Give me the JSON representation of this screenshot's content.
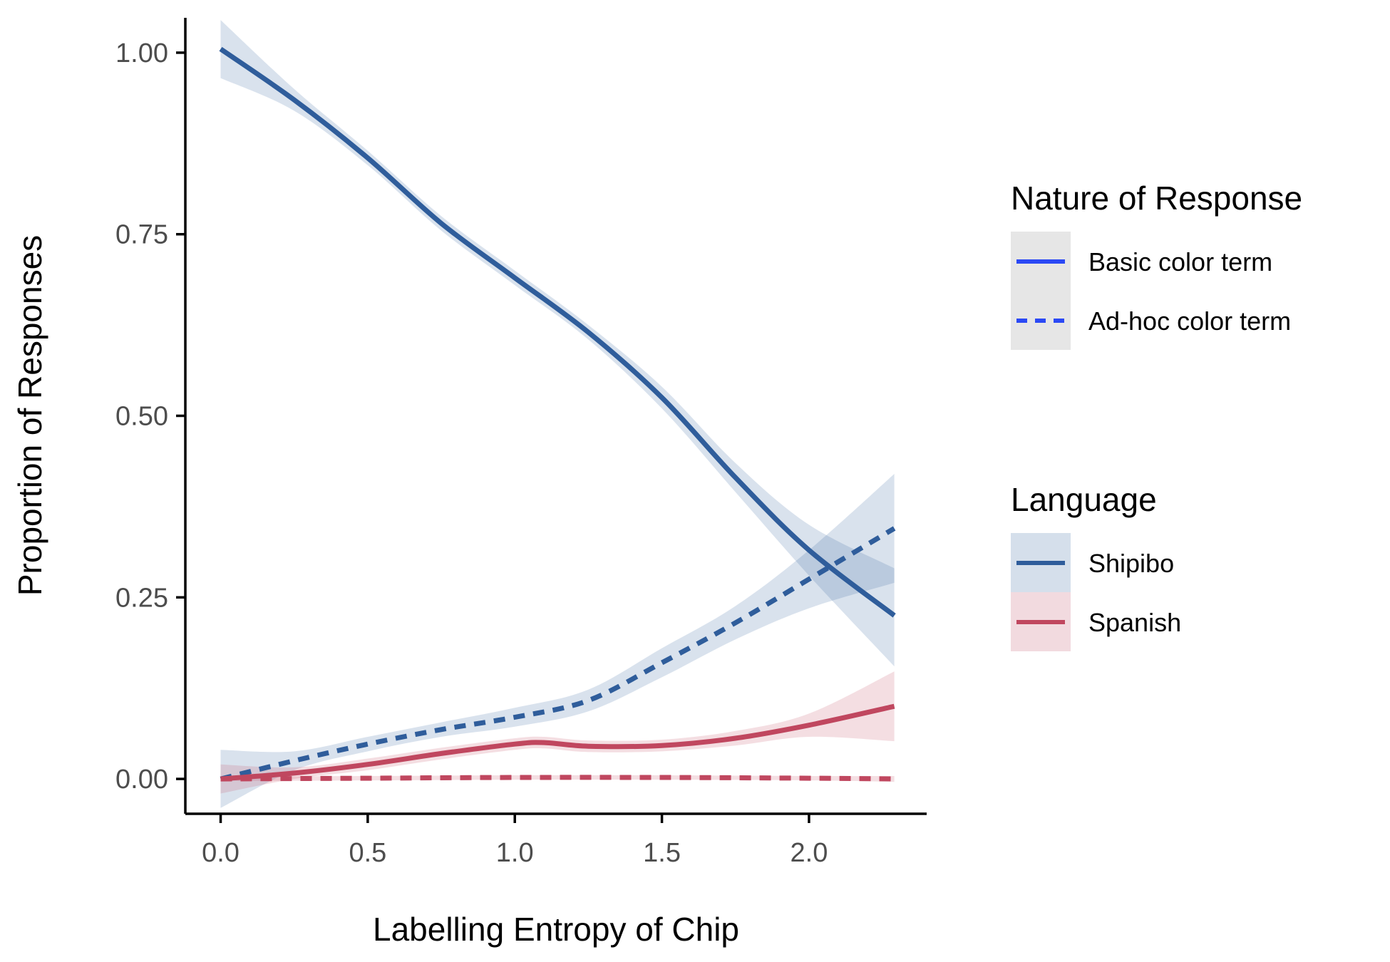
{
  "chart_data": {
    "type": "line",
    "xlabel": "Labelling Entropy of Chip",
    "ylabel": "Proportion of Responses",
    "xlim": [
      -0.12,
      2.4
    ],
    "ylim": [
      -0.048,
      1.048
    ],
    "x_ticks": [
      0.0,
      0.5,
      1.0,
      1.5,
      2.0
    ],
    "x_tick_labels": [
      "0.0",
      "0.5",
      "1.0",
      "1.5",
      "2.0"
    ],
    "y_ticks": [
      0.0,
      0.25,
      0.5,
      0.75,
      1.0
    ],
    "y_tick_labels": [
      "0.00",
      "0.25",
      "0.50",
      "0.75",
      "1.00"
    ],
    "grid": false,
    "legend_position": "right",
    "colors": {
      "shipibo": "#2f5d9b",
      "spanish": "#c0475f",
      "legend_key_line": "#2b49f5"
    },
    "legends": [
      {
        "title": "Nature of Response",
        "entries": [
          {
            "label": "Basic color term",
            "linestyle": "solid"
          },
          {
            "label": "Ad-hoc color term",
            "linestyle": "dashed"
          }
        ]
      },
      {
        "title": "Language",
        "entries": [
          {
            "label": "Shipibo",
            "color": "#2f5d9b"
          },
          {
            "label": "Spanish",
            "color": "#c0475f"
          }
        ]
      }
    ],
    "series": [
      {
        "language": "Shipibo",
        "response": "Basic color term",
        "linestyle": "solid",
        "x": [
          0.0,
          0.25,
          0.5,
          0.75,
          1.0,
          1.25,
          1.5,
          1.75,
          2.0,
          2.29
        ],
        "y": [
          1.005,
          0.935,
          0.855,
          0.765,
          0.69,
          0.615,
          0.525,
          0.415,
          0.315,
          0.225
        ],
        "lower": [
          0.965,
          0.92,
          0.845,
          0.755,
          0.68,
          0.605,
          0.51,
          0.395,
          0.28,
          0.155
        ],
        "upper": [
          1.045,
          0.95,
          0.865,
          0.775,
          0.7,
          0.625,
          0.54,
          0.435,
          0.35,
          0.29
        ]
      },
      {
        "language": "Shipibo",
        "response": "Ad-hoc color term",
        "linestyle": "dashed",
        "x": [
          0.0,
          0.25,
          0.5,
          0.75,
          1.0,
          1.25,
          1.5,
          1.75,
          2.0,
          2.29
        ],
        "y": [
          0.0,
          0.025,
          0.048,
          0.068,
          0.085,
          0.108,
          0.16,
          0.215,
          0.275,
          0.345
        ],
        "lower": [
          -0.04,
          0.012,
          0.038,
          0.058,
          0.072,
          0.093,
          0.14,
          0.192,
          0.235,
          0.27
        ],
        "upper": [
          0.04,
          0.038,
          0.058,
          0.078,
          0.098,
          0.123,
          0.18,
          0.238,
          0.315,
          0.42
        ]
      },
      {
        "language": "Spanish",
        "response": "Basic color term",
        "linestyle": "solid",
        "x": [
          0.0,
          0.25,
          0.5,
          0.75,
          1.0,
          1.1,
          1.25,
          1.5,
          1.75,
          2.0,
          2.29
        ],
        "y": [
          0.0,
          0.008,
          0.02,
          0.035,
          0.048,
          0.05,
          0.045,
          0.046,
          0.056,
          0.074,
          0.1
        ],
        "lower": [
          -0.02,
          0.0,
          0.012,
          0.027,
          0.04,
          0.042,
          0.037,
          0.038,
          0.046,
          0.058,
          0.052
        ],
        "upper": [
          0.02,
          0.016,
          0.028,
          0.043,
          0.056,
          0.058,
          0.053,
          0.054,
          0.066,
          0.09,
          0.148
        ]
      },
      {
        "language": "Spanish",
        "response": "Ad-hoc color term",
        "linestyle": "dashed",
        "x": [
          0.0,
          0.5,
          1.0,
          1.5,
          2.0,
          2.29
        ],
        "y": [
          0.0,
          0.001,
          0.002,
          0.002,
          0.001,
          0.0
        ],
        "lower": [
          -0.003,
          -0.002,
          -0.001,
          -0.001,
          -0.002,
          -0.004
        ],
        "upper": [
          0.003,
          0.004,
          0.005,
          0.005,
          0.004,
          0.004
        ]
      }
    ]
  }
}
